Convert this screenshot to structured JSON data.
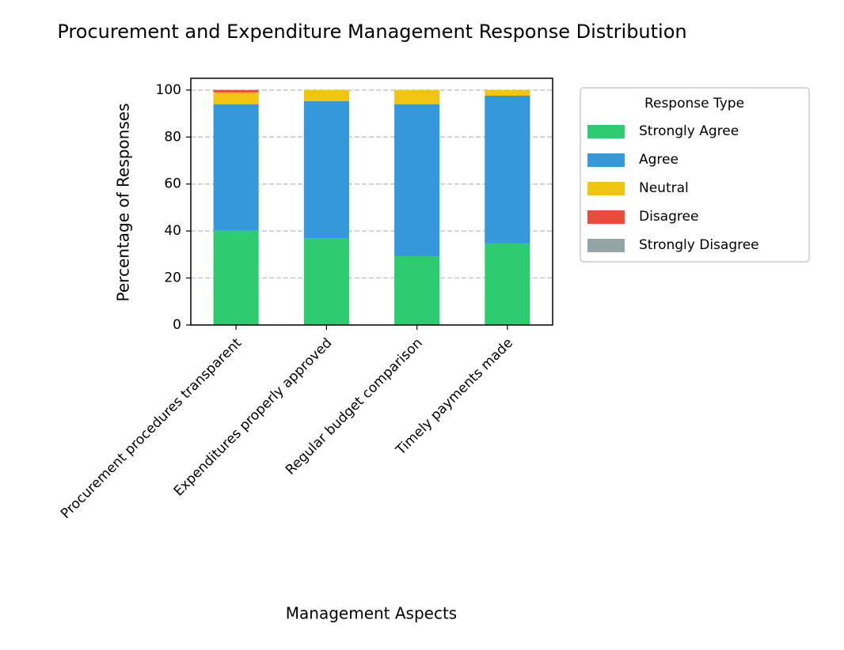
{
  "chart_data": {
    "type": "stacked_bar",
    "title": "Procurement and Expenditure Management Response Distribution",
    "x_label": "Management Aspects",
    "y_label": "Percentage of Responses",
    "categories": [
      "Procurement procedures transparent",
      "Expenditures properly approved",
      "Regular budget comparison",
      "Timely payments made"
    ],
    "series": [
      {
        "name": "Strongly Agree",
        "color": "#2ecc71",
        "values": [
          40.4,
          37.0,
          29.3,
          34.7
        ]
      },
      {
        "name": "Agree",
        "color": "#3498db",
        "values": [
          53.5,
          58.3,
          64.6,
          62.9
        ]
      },
      {
        "name": "Neutral",
        "color": "#f1c40f",
        "values": [
          5.1,
          4.7,
          6.1,
          2.4
        ]
      },
      {
        "name": "Disagree",
        "color": "#e74c3c",
        "values": [
          1.0,
          0,
          0,
          0
        ]
      },
      {
        "name": "Strongly Disagree",
        "color": "#95a5a6",
        "values": [
          0,
          0,
          0,
          0
        ]
      }
    ],
    "legend_title": "Response Type",
    "legend_position": "outside right",
    "ylim": [
      0,
      105
    ],
    "yticks": [
      0,
      20,
      40,
      60,
      80,
      100
    ],
    "grid": true
  }
}
